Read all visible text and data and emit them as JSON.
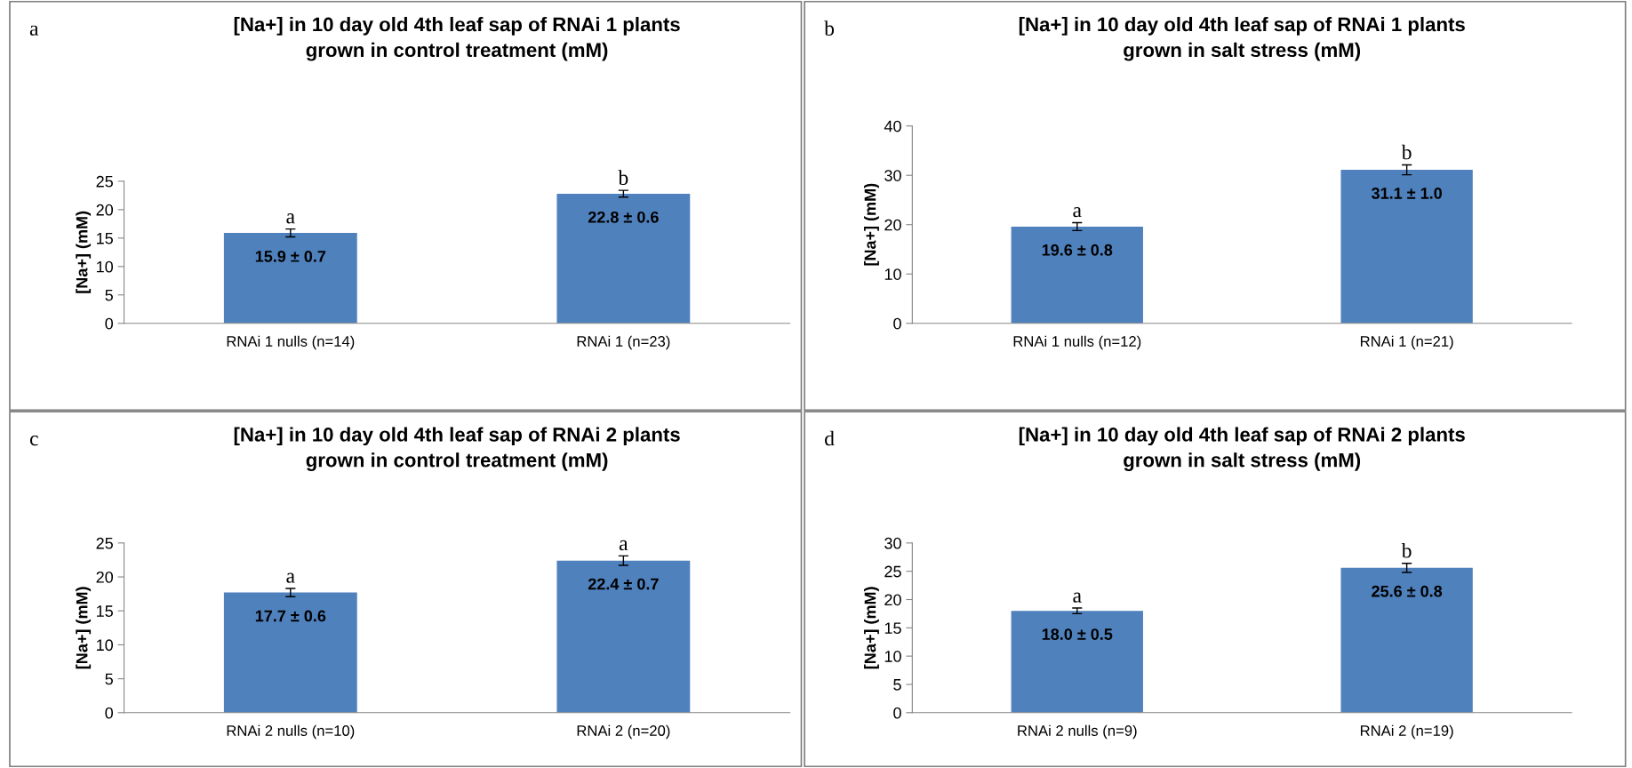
{
  "chart_data": [
    {
      "type": "bar",
      "title": "[Na+] in 10 day old 4th leaf sap of RNAi 1 plants\ngrown in control treatment (mM)",
      "ylabel": "[Na+] (mM)",
      "categories": [
        "RNAi 1 nulls (n=14)",
        "RNAi 1 (n=23)"
      ],
      "values": [
        15.9,
        22.8
      ],
      "errors": [
        0.7,
        0.6
      ],
      "value_labels": [
        "15.9 ± 0.7",
        "22.8 ± 0.6"
      ],
      "color": "#4f81bd",
      "ylim": [
        0,
        25
      ],
      "yticks": [
        0,
        5,
        10,
        15,
        20,
        25
      ],
      "grid": false,
      "annotations": [
        "a",
        {
          "text": "a",
          "x": "RNAi 1 nulls (n=14)",
          "y": 16.6
        },
        {
          "text": "b",
          "x": "RNAi 1 (n=23)",
          "y": 23.4
        }
      ]
    },
    {
      "type": "bar",
      "title": "[Na+] in 10 day old 4th leaf sap of RNAi 1 plants\ngrown in salt stress (mM)",
      "ylabel": "[Na+] (mM)",
      "categories": [
        "RNAi 1 nulls (n=12)",
        "RNAi 1 (n=21)"
      ],
      "values": [
        19.6,
        31.1
      ],
      "errors": [
        0.8,
        1.0
      ],
      "value_labels": [
        "19.6 ± 0.8",
        "31.1 ± 1.0"
      ],
      "color": "#4f81bd",
      "ylim": [
        0,
        40
      ],
      "yticks": [
        0,
        10,
        20,
        30,
        40
      ],
      "grid": false,
      "annotations": [
        "b",
        {
          "text": "a",
          "x": "RNAi 1 nulls (n=12)",
          "y": 20.4
        },
        {
          "text": "b",
          "x": "RNAi 1 (n=21)",
          "y": 32.1
        }
      ]
    },
    {
      "type": "bar",
      "title": "[Na+] in 10 day old 4th leaf sap of RNAi 2 plants\ngrown in control treatment (mM)",
      "ylabel": "[Na+] (mM)",
      "categories": [
        "RNAi 2 nulls (n=10)",
        "RNAi 2 (n=20)"
      ],
      "values": [
        17.7,
        22.4
      ],
      "errors": [
        0.6,
        0.7
      ],
      "value_labels": [
        "17.7 ± 0.6",
        "22.4 ± 0.7"
      ],
      "color": "#4f81bd",
      "ylim": [
        0,
        25
      ],
      "yticks": [
        0,
        5,
        10,
        15,
        20,
        25
      ],
      "grid": false,
      "annotations": [
        "c",
        {
          "text": "a",
          "x": "RNAi 2 nulls (n=10)",
          "y": 18.3
        },
        {
          "text": "a",
          "x": "RNAi 2 (n=20)",
          "y": 23.1
        }
      ]
    },
    {
      "type": "bar",
      "title": "[Na+] in 10 day old 4th leaf sap of RNAi 2 plants\ngrown in salt stress (mM)",
      "ylabel": "[Na+] (mM)",
      "categories": [
        "RNAi 2 nulls (n=9)",
        "RNAi 2 (n=19)"
      ],
      "values": [
        18.0,
        25.6
      ],
      "errors": [
        0.5,
        0.8
      ],
      "value_labels": [
        "18.0 ± 0.5",
        "25.6 ± 0.8"
      ],
      "color": "#4f81bd",
      "ylim": [
        0,
        30
      ],
      "yticks": [
        0,
        5,
        10,
        15,
        20,
        25,
        30
      ],
      "grid": false,
      "annotations": [
        "d",
        {
          "text": "a",
          "x": "RNAi 2 nulls (n=9)",
          "y": 18.5
        },
        {
          "text": "b",
          "x": "RNAi 2 (n=19)",
          "y": 26.4
        }
      ]
    }
  ]
}
